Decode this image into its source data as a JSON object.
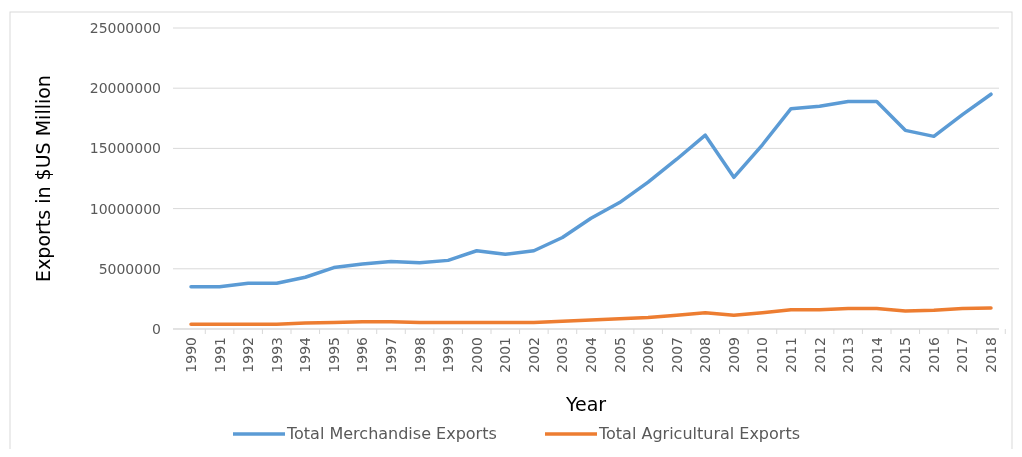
{
  "chart_data": {
    "type": "line",
    "xlabel": "Year",
    "ylabel": "Exports in $US Million",
    "categories": [
      "1990",
      "1991",
      "1992",
      "1993",
      "1994",
      "1995",
      "1996",
      "1997",
      "1998",
      "1999",
      "2000",
      "2001",
      "2002",
      "2003",
      "2004",
      "2005",
      "2006",
      "2007",
      "2008",
      "2009",
      "2010",
      "2011",
      "2012",
      "2013",
      "2014",
      "2015",
      "2016",
      "2017",
      "2018"
    ],
    "series": [
      {
        "name": "Total Merchandise Exports",
        "color": "#5b9bd5",
        "values": [
          3500000,
          3500000,
          3800000,
          3800000,
          4300000,
          5100000,
          5400000,
          5600000,
          5500000,
          5700000,
          6500000,
          6200000,
          6500000,
          7600000,
          9200000,
          10500000,
          12200000,
          14100000,
          16100000,
          12600000,
          15300000,
          18300000,
          18500000,
          18900000,
          18900000,
          16500000,
          16000000,
          17800000,
          19500000
        ]
      },
      {
        "name": "Total Agricultural Exports",
        "color": "#ed7d31",
        "values": [
          400000,
          400000,
          400000,
          400000,
          500000,
          550000,
          600000,
          600000,
          550000,
          550000,
          550000,
          550000,
          550000,
          650000,
          750000,
          850000,
          950000,
          1150000,
          1350000,
          1150000,
          1350000,
          1600000,
          1600000,
          1700000,
          1700000,
          1500000,
          1550000,
          1700000,
          1750000
        ]
      }
    ],
    "ylim": [
      0,
      25000000
    ],
    "yticks": [
      0,
      5000000,
      10000000,
      15000000,
      20000000,
      25000000
    ],
    "grid": "y",
    "legend": "bottom",
    "marker": "none",
    "line_style": "solid"
  }
}
